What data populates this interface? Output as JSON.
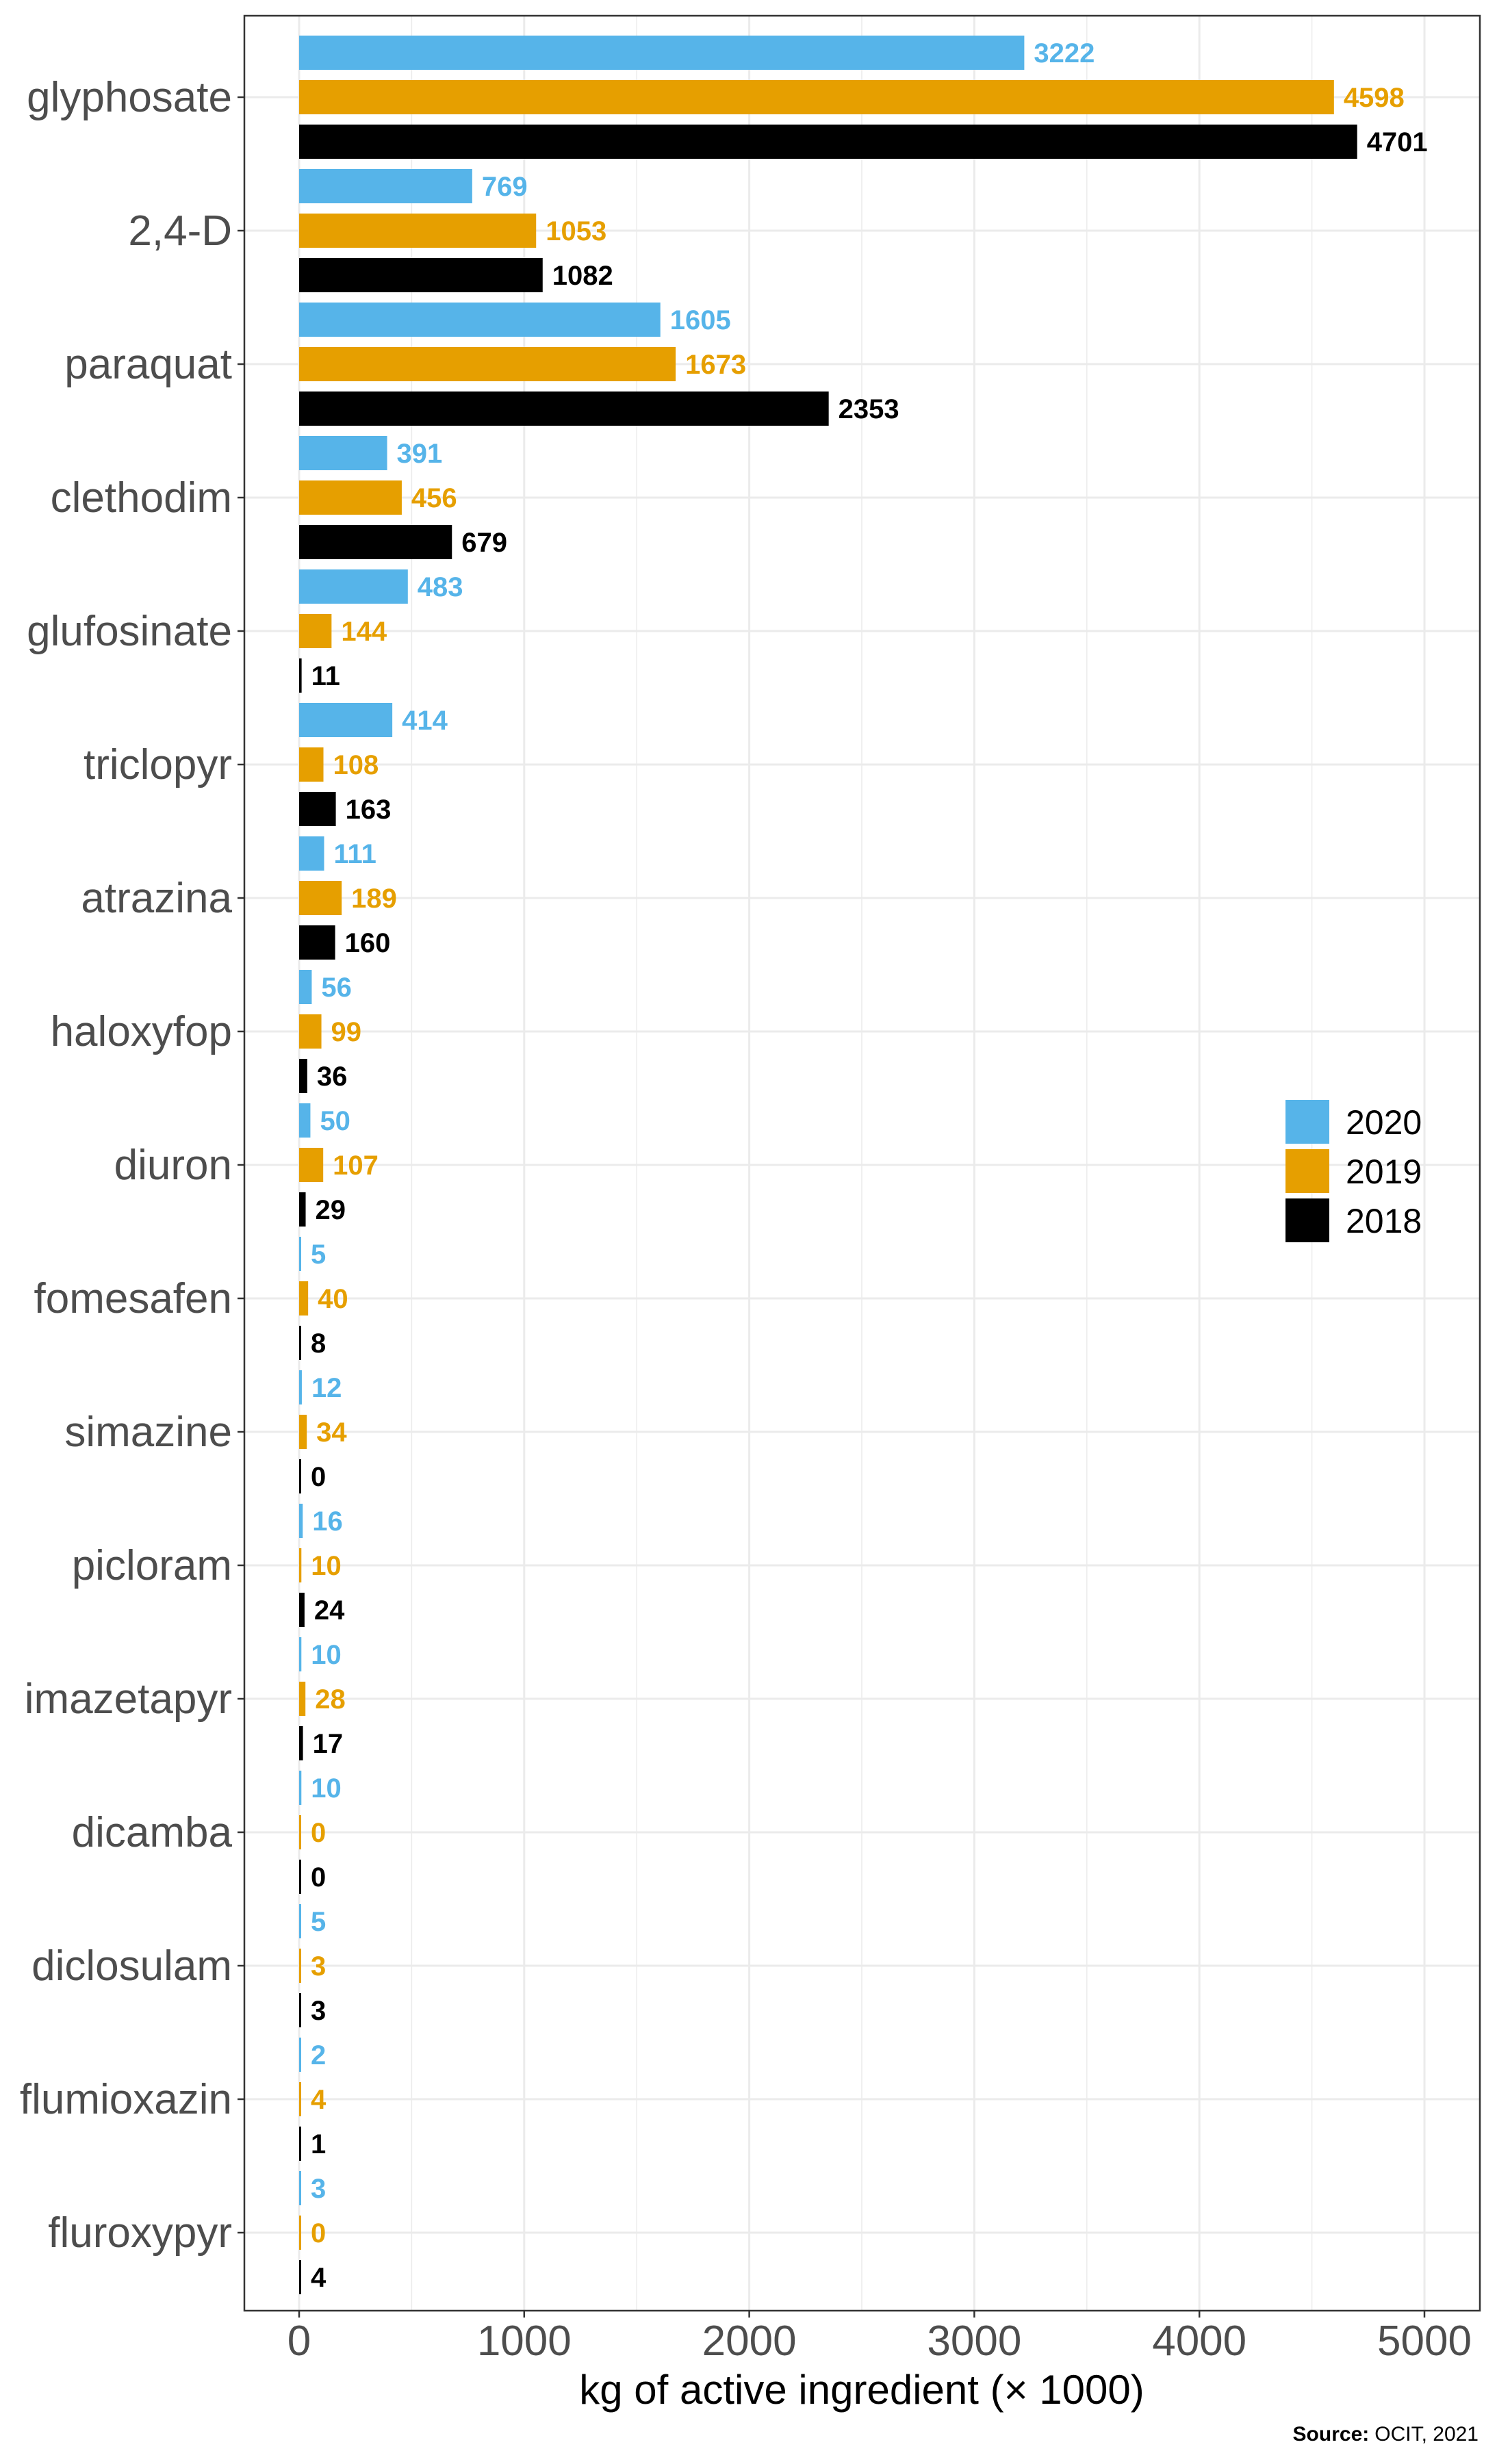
{
  "chart_data": {
    "type": "bar",
    "orientation": "horizontal",
    "xlabel": "kg of active ingredient (× 1000)",
    "xlim": [
      0,
      5000
    ],
    "xticks": [
      0,
      1000,
      2000,
      3000,
      4000,
      5000
    ],
    "grid": true,
    "legend_position": "right",
    "categories": [
      "glyphosate",
      "2,4-D",
      "paraquat",
      "clethodim",
      "glufosinate",
      "triclopyr",
      "atrazina",
      "haloxyfop",
      "diuron",
      "fomesafen",
      "simazine",
      "picloram",
      "imazetapyr",
      "dicamba",
      "diclosulam",
      "flumioxazin",
      "fluroxypyr"
    ],
    "series": [
      {
        "name": "2020",
        "color": "#56B4E9",
        "values": [
          3222,
          769,
          1605,
          391,
          483,
          414,
          111,
          56,
          50,
          5,
          12,
          16,
          10,
          10,
          5,
          2,
          3
        ]
      },
      {
        "name": "2019",
        "color": "#E69F00",
        "values": [
          4598,
          1053,
          1673,
          456,
          144,
          108,
          189,
          99,
          107,
          40,
          34,
          10,
          28,
          0,
          3,
          4,
          0
        ]
      },
      {
        "name": "2018",
        "color": "#000000",
        "values": [
          4701,
          1082,
          2353,
          679,
          11,
          163,
          160,
          36,
          29,
          8,
          0,
          24,
          17,
          0,
          3,
          1,
          4
        ]
      }
    ],
    "source_label": "Source:",
    "source_text": "OCIT, 2021"
  }
}
